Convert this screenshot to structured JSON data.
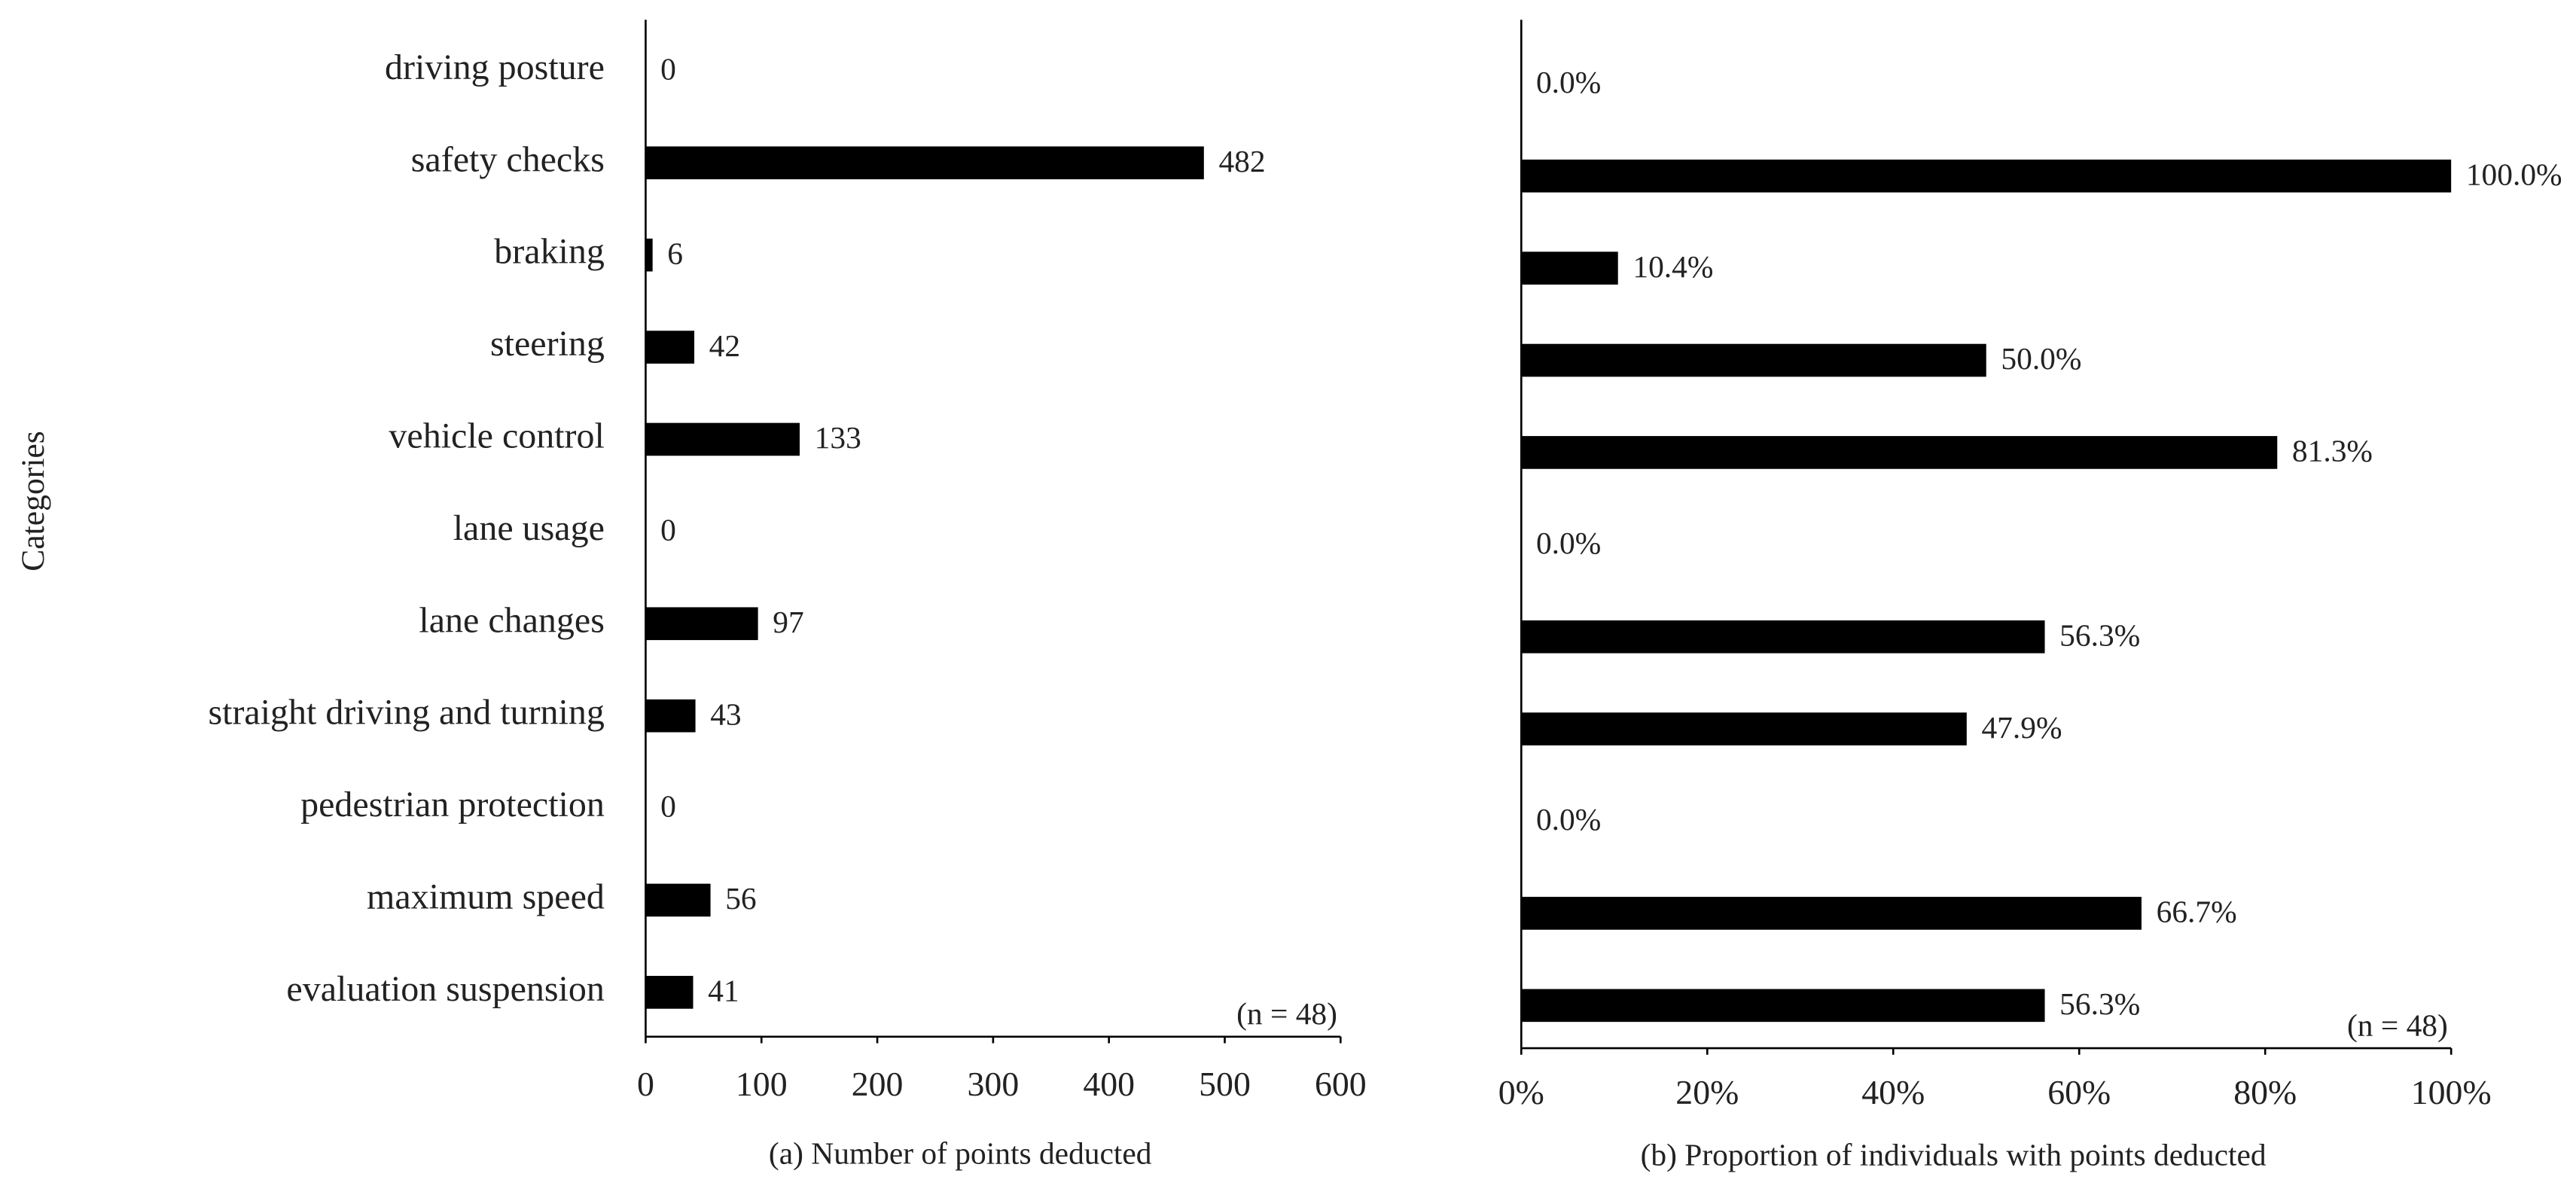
{
  "chart_data": [
    {
      "type": "bar",
      "orientation": "horizontal",
      "categories": [
        "driving posture",
        "safety checks",
        "braking",
        "steering",
        "vehicle control",
        "lane usage",
        "lane changes",
        "straight driving and turning",
        "pedestrian protection",
        "maximum speed",
        "evaluation suspension"
      ],
      "values": [
        0,
        482,
        6,
        42,
        133,
        0,
        97,
        43,
        0,
        56,
        41
      ],
      "color": "#000000",
      "xlim": [
        0,
        600
      ],
      "xticks": [
        0,
        100,
        200,
        300,
        400,
        500,
        600
      ],
      "xlabel": "(a) Number of points deducted",
      "ylabel": "Categories",
      "annotation": "(n = 48)"
    },
    {
      "type": "bar",
      "orientation": "horizontal",
      "values": [
        0,
        100,
        10.4,
        50,
        81.3,
        0,
        56.3,
        47.9,
        0,
        66.7,
        56.3
      ],
      "value_labels": [
        "0.0%",
        "100.0%",
        "10.4%",
        "50.0%",
        "81.3%",
        "0.0%",
        "56.3%",
        "47.9%",
        "0.0%",
        "66.7%",
        "56.3%"
      ],
      "color": "#000000",
      "xlim": [
        0,
        100
      ],
      "xticks": [
        {
          "value": 0,
          "label": "0%"
        },
        {
          "value": 20,
          "label": "20%"
        },
        {
          "value": 40,
          "label": "40%"
        },
        {
          "value": 60,
          "label": "60%"
        },
        {
          "value": 80,
          "label": "80%"
        },
        {
          "value": 100,
          "label": "100%"
        }
      ],
      "xlabel": "(b) Proportion of individuals with points deducted",
      "annotation": "(n = 48)"
    }
  ]
}
